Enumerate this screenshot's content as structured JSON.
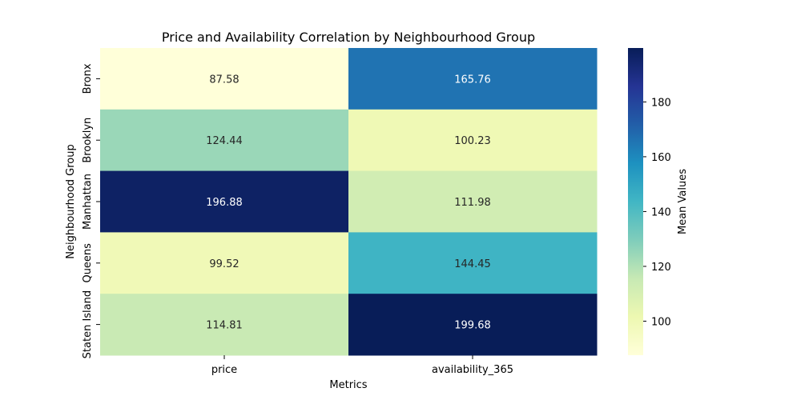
{
  "chart_data": {
    "type": "heatmap",
    "title": "Price and Availability Correlation by Neighbourhood Group",
    "xlabel": "Metrics",
    "ylabel": "Neighbourhood Group",
    "x_categories": [
      "price",
      "availability_365"
    ],
    "y_categories": [
      "Bronx",
      "Brooklyn",
      "Manhattan",
      "Queens",
      "Staten Island"
    ],
    "values": [
      [
        87.58,
        165.76
      ],
      [
        124.44,
        100.23
      ],
      [
        196.88,
        111.98
      ],
      [
        99.52,
        144.45
      ],
      [
        114.81,
        199.68
      ]
    ],
    "cell_labels": [
      [
        "87.58",
        "165.76"
      ],
      [
        "124.44",
        "100.23"
      ],
      [
        "196.88",
        "111.98"
      ],
      [
        "99.52",
        "144.45"
      ],
      [
        "114.81",
        "199.68"
      ]
    ],
    "colorbar": {
      "label": "Mean Values",
      "ticks": [
        "100",
        "120",
        "140",
        "160",
        "180"
      ],
      "tick_values": [
        100,
        120,
        140,
        160,
        180
      ],
      "range": [
        87.58,
        199.68
      ]
    },
    "colormap": "YlGnBu",
    "colormap_stops": [
      "#ffffd9",
      "#edf8b1",
      "#c7e9b4",
      "#7fcdbb",
      "#41b6c4",
      "#1d91c0",
      "#225ea8",
      "#253494",
      "#081d58"
    ]
  }
}
